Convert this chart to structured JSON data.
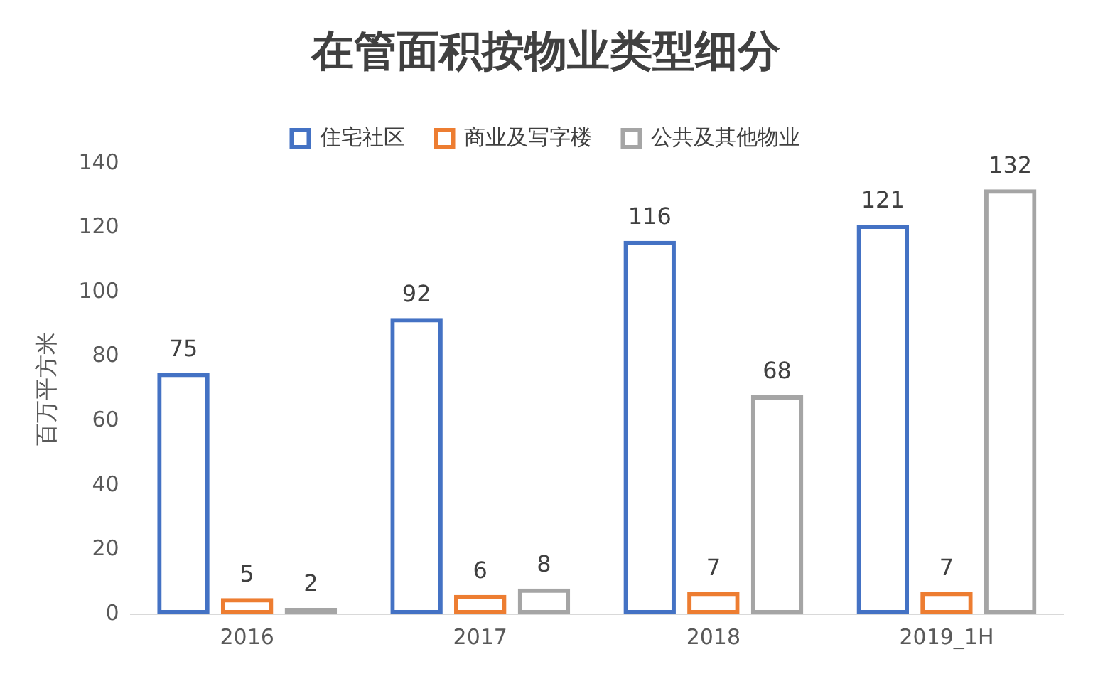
{
  "chart_data": {
    "type": "bar",
    "title": "在管面积按物业类型细分",
    "ylabel": "百万平方米",
    "categories": [
      "2016",
      "2017",
      "2018",
      "2019_1H"
    ],
    "series": [
      {
        "name": "住宅社区",
        "color": "#4472c4",
        "values": [
          75,
          92,
          116,
          121
        ]
      },
      {
        "name": "商业及写字楼",
        "color": "#ed7d31",
        "values": [
          5,
          6,
          7,
          7
        ]
      },
      {
        "name": "公共及其他物业",
        "color": "#a5a5a5",
        "values": [
          2,
          8,
          68,
          132
        ]
      }
    ],
    "ylim": [
      0,
      140
    ],
    "yticks": [
      0,
      20,
      40,
      60,
      80,
      100,
      120,
      140
    ],
    "grid": false,
    "legend": "top",
    "data_labels": true
  }
}
